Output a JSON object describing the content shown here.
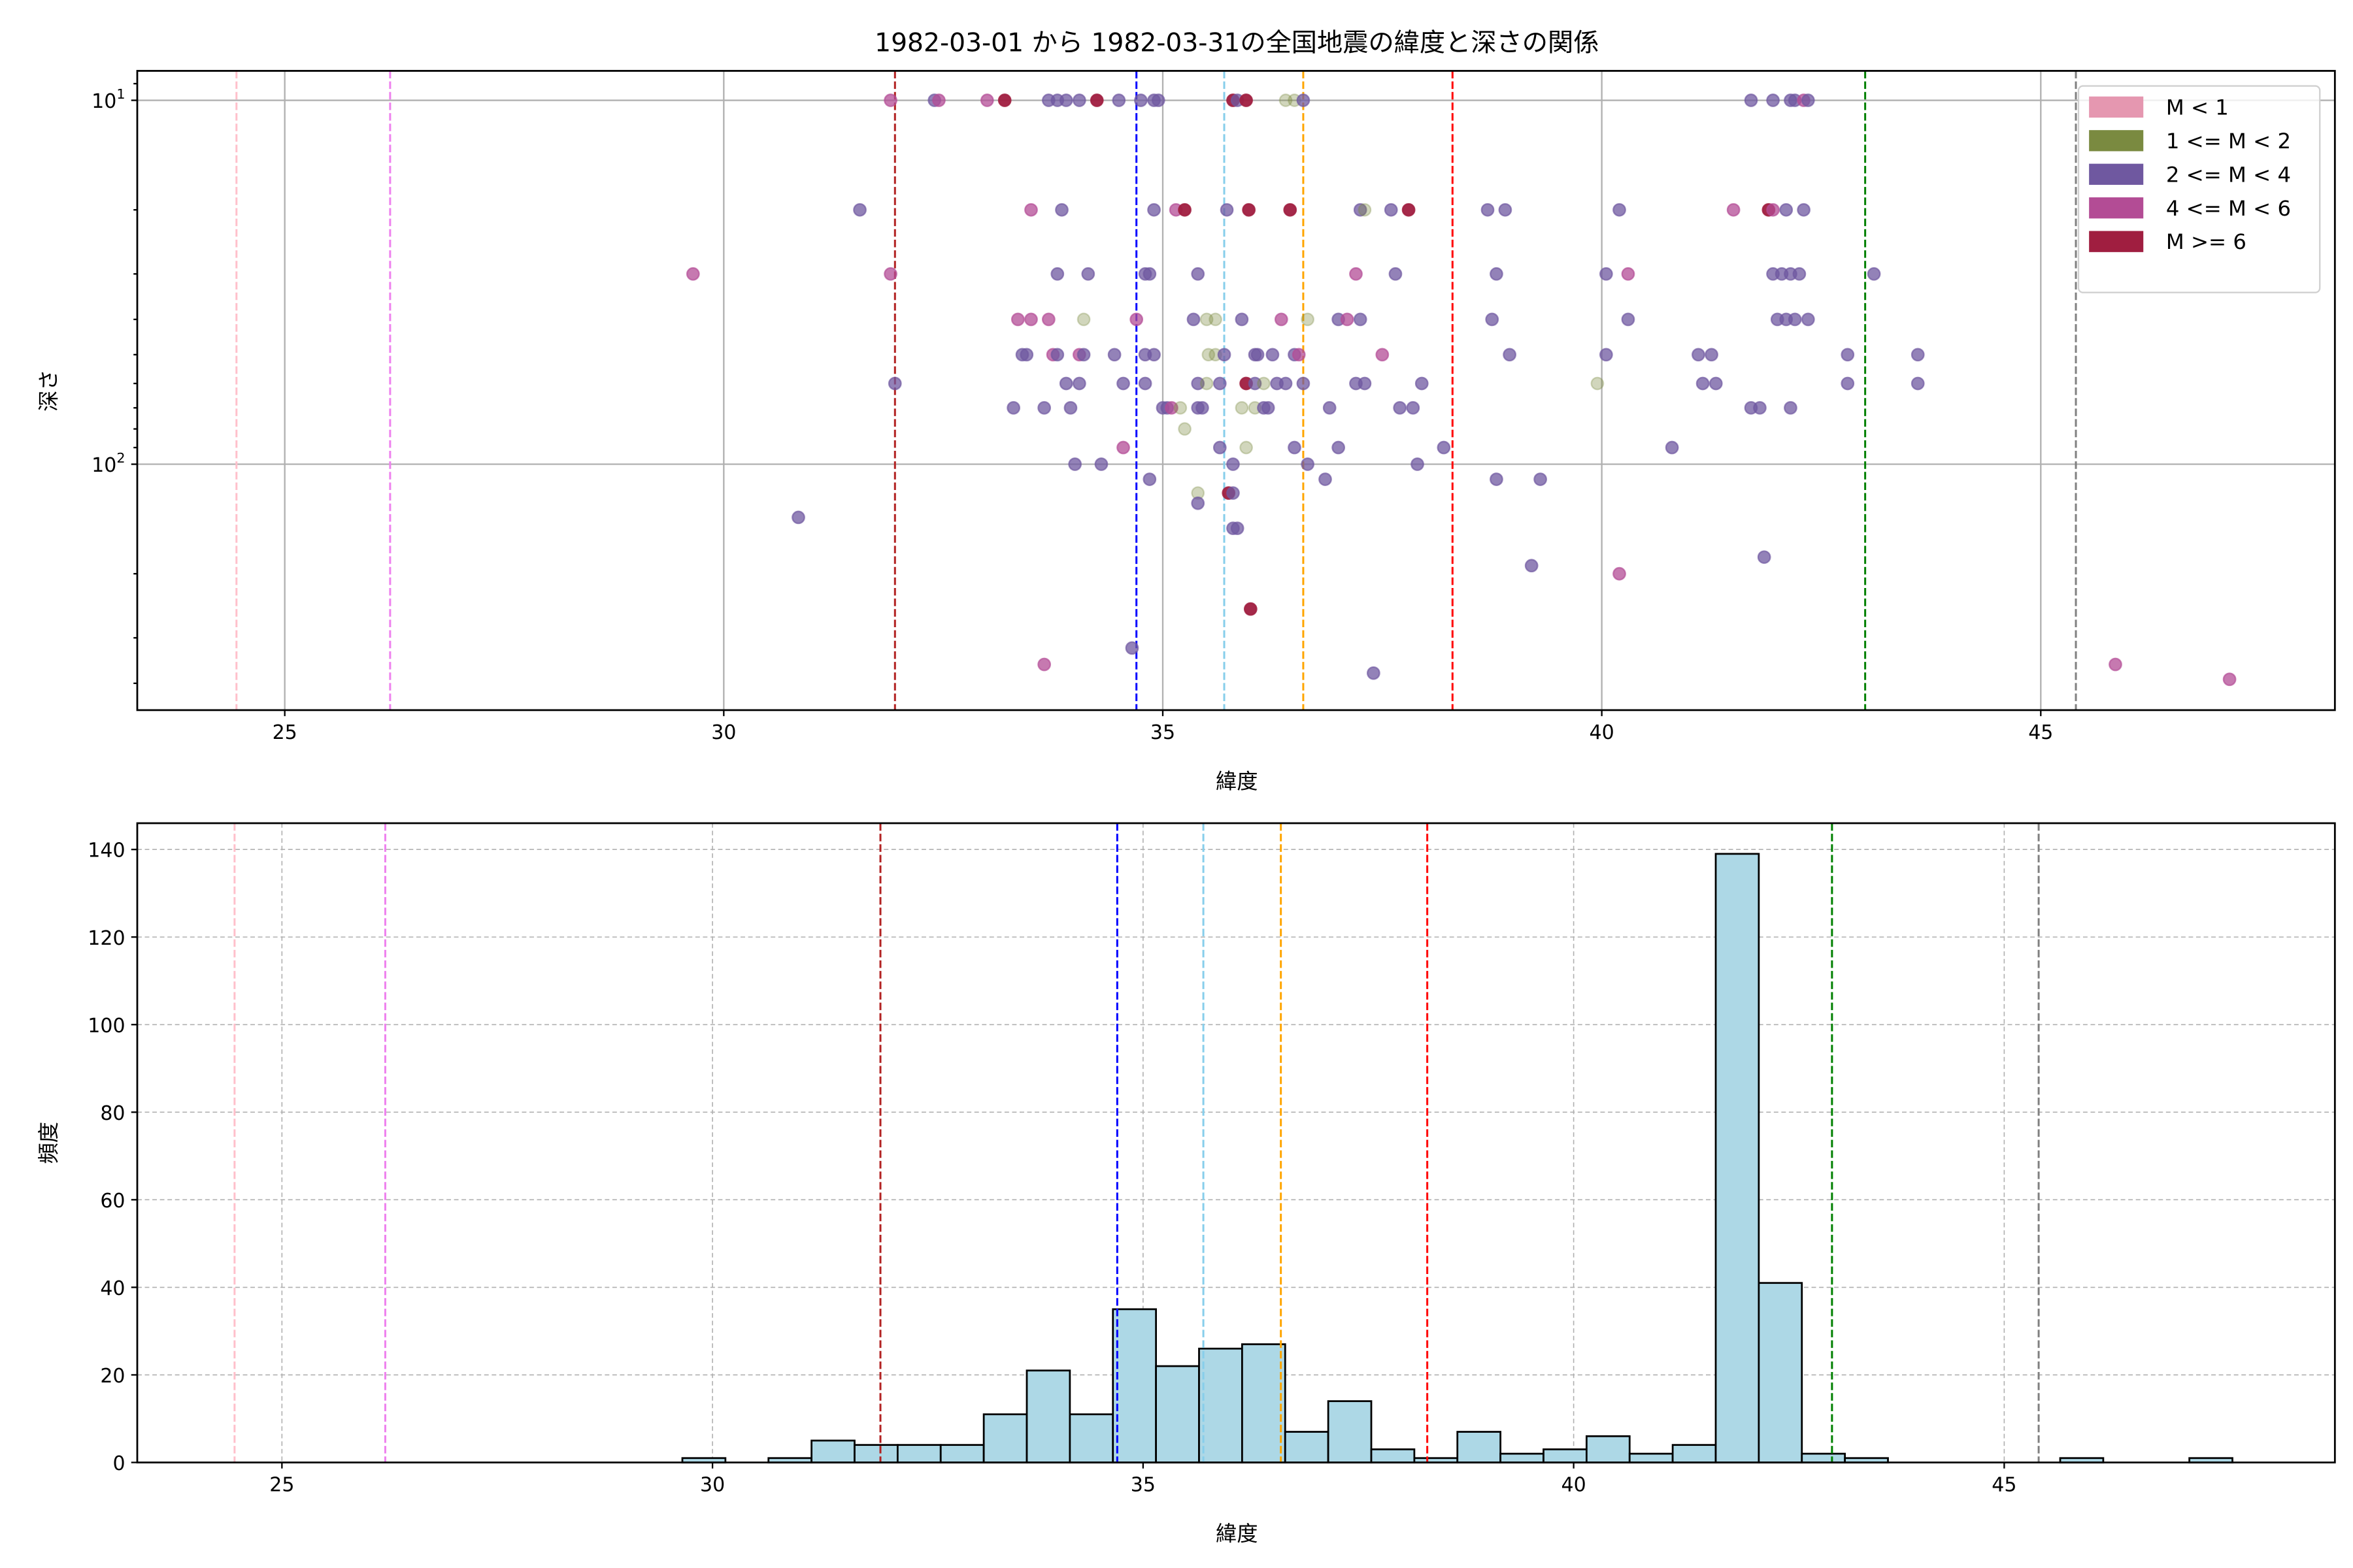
{
  "chart_data": [
    {
      "type": "scatter",
      "title": "1982-03-01 から 1982-03-31の全国地震の緯度と深さの関係",
      "xlabel": "緯度",
      "ylabel": "深さ",
      "xlim": [
        23.32,
        48.35
      ],
      "ylim": [
        474,
        8.3
      ],
      "yscale": "log",
      "yaxis_inverted": true,
      "xticks": [
        25,
        30,
        35,
        40,
        45
      ],
      "ytick_labels": [
        {
          "value": 10,
          "base": "10",
          "exp": "1"
        },
        {
          "value": 100,
          "base": "10",
          "exp": "2"
        }
      ],
      "grid": true,
      "legend": {
        "placement": "top-right",
        "entries": [
          {
            "label": "M < 1",
            "color": "#e597b0"
          },
          {
            "label": "1 <= M < 2",
            "color": "#7a8a40"
          },
          {
            "label": "2 <= M < 4",
            "color": "#6f58a0"
          },
          {
            "label": "4 <= M < 6",
            "color": "#b34c95"
          },
          {
            "label": "M >= 6",
            "color": "#a01e40"
          }
        ]
      },
      "points_format": [
        "latitude",
        "depth",
        "magnitude_class_index"
      ],
      "points": [
        [
          31.9,
          10,
          3
        ],
        [
          32.4,
          10,
          2
        ],
        [
          32.45,
          10,
          3
        ],
        [
          33.0,
          10,
          3
        ],
        [
          33.2,
          10,
          4
        ],
        [
          33.7,
          10,
          2
        ],
        [
          33.8,
          10,
          2
        ],
        [
          33.9,
          10,
          2
        ],
        [
          34.05,
          10,
          2
        ],
        [
          34.25,
          10,
          4
        ],
        [
          34.5,
          10,
          2
        ],
        [
          34.75,
          10,
          2
        ],
        [
          34.9,
          10,
          2
        ],
        [
          34.95,
          10,
          2
        ],
        [
          35.8,
          10,
          4
        ],
        [
          35.85,
          10,
          2
        ],
        [
          35.95,
          10,
          4
        ],
        [
          36.4,
          10,
          1
        ],
        [
          36.5,
          10,
          1
        ],
        [
          36.6,
          10,
          2
        ],
        [
          41.7,
          10,
          2
        ],
        [
          41.95,
          10,
          2
        ],
        [
          42.15,
          10,
          2
        ],
        [
          42.2,
          10,
          2
        ],
        [
          42.3,
          10,
          3
        ],
        [
          42.35,
          10,
          2
        ],
        [
          31.55,
          20,
          2
        ],
        [
          33.5,
          20,
          3
        ],
        [
          33.85,
          20,
          2
        ],
        [
          34.9,
          20,
          2
        ],
        [
          35.15,
          20,
          3
        ],
        [
          35.25,
          20,
          4
        ],
        [
          35.73,
          20,
          2
        ],
        [
          35.98,
          20,
          4
        ],
        [
          36.45,
          20,
          4
        ],
        [
          37.25,
          20,
          2
        ],
        [
          37.3,
          20,
          1
        ],
        [
          37.6,
          20,
          2
        ],
        [
          37.8,
          20,
          4
        ],
        [
          38.7,
          20,
          2
        ],
        [
          38.9,
          20,
          2
        ],
        [
          40.2,
          20,
          2
        ],
        [
          41.5,
          20,
          3
        ],
        [
          41.9,
          20,
          4
        ],
        [
          41.95,
          20,
          3
        ],
        [
          42.1,
          20,
          2
        ],
        [
          42.3,
          20,
          2
        ],
        [
          29.65,
          30,
          3
        ],
        [
          31.9,
          30,
          3
        ],
        [
          33.8,
          30,
          2
        ],
        [
          34.15,
          30,
          2
        ],
        [
          34.8,
          30,
          2
        ],
        [
          34.85,
          30,
          2
        ],
        [
          35.4,
          30,
          2
        ],
        [
          37.2,
          30,
          3
        ],
        [
          37.65,
          30,
          2
        ],
        [
          38.8,
          30,
          2
        ],
        [
          40.05,
          30,
          2
        ],
        [
          40.3,
          30,
          3
        ],
        [
          41.95,
          30,
          2
        ],
        [
          42.05,
          30,
          2
        ],
        [
          42.15,
          30,
          2
        ],
        [
          42.25,
          30,
          2
        ],
        [
          43.1,
          30,
          2
        ],
        [
          33.35,
          40,
          3
        ],
        [
          33.5,
          40,
          3
        ],
        [
          33.7,
          40,
          3
        ],
        [
          34.1,
          40,
          1
        ],
        [
          34.7,
          40,
          3
        ],
        [
          35.35,
          40,
          2
        ],
        [
          35.5,
          40,
          1
        ],
        [
          35.6,
          40,
          1
        ],
        [
          35.9,
          40,
          2
        ],
        [
          36.35,
          40,
          3
        ],
        [
          36.65,
          40,
          1
        ],
        [
          37.0,
          40,
          2
        ],
        [
          37.1,
          40,
          3
        ],
        [
          37.25,
          40,
          2
        ],
        [
          38.75,
          40,
          2
        ],
        [
          40.3,
          40,
          2
        ],
        [
          42.0,
          40,
          2
        ],
        [
          42.1,
          40,
          2
        ],
        [
          42.2,
          40,
          2
        ],
        [
          42.35,
          40,
          2
        ],
        [
          33.4,
          50,
          2
        ],
        [
          33.45,
          50,
          2
        ],
        [
          33.75,
          50,
          3
        ],
        [
          33.8,
          50,
          2
        ],
        [
          34.05,
          50,
          3
        ],
        [
          34.1,
          50,
          2
        ],
        [
          34.45,
          50,
          2
        ],
        [
          34.8,
          50,
          2
        ],
        [
          34.9,
          50,
          2
        ],
        [
          35.52,
          50,
          1
        ],
        [
          35.6,
          50,
          1
        ],
        [
          35.7,
          50,
          2
        ],
        [
          36.05,
          50,
          2
        ],
        [
          36.08,
          50,
          2
        ],
        [
          36.25,
          50,
          2
        ],
        [
          36.5,
          50,
          2
        ],
        [
          36.55,
          50,
          3
        ],
        [
          37.5,
          50,
          3
        ],
        [
          38.95,
          50,
          2
        ],
        [
          40.05,
          50,
          2
        ],
        [
          41.1,
          50,
          2
        ],
        [
          41.25,
          50,
          2
        ],
        [
          42.8,
          50,
          2
        ],
        [
          43.6,
          50,
          2
        ],
        [
          31.95,
          60,
          2
        ],
        [
          33.9,
          60,
          2
        ],
        [
          34.05,
          60,
          2
        ],
        [
          34.55,
          60,
          2
        ],
        [
          34.8,
          60,
          2
        ],
        [
          35.4,
          60,
          2
        ],
        [
          35.5,
          60,
          1
        ],
        [
          35.65,
          60,
          2
        ],
        [
          35.95,
          60,
          4
        ],
        [
          36.05,
          60,
          2
        ],
        [
          36.15,
          60,
          1
        ],
        [
          36.3,
          60,
          2
        ],
        [
          36.4,
          60,
          2
        ],
        [
          36.6,
          60,
          2
        ],
        [
          37.2,
          60,
          2
        ],
        [
          37.3,
          60,
          2
        ],
        [
          37.95,
          60,
          2
        ],
        [
          39.95,
          60,
          1
        ],
        [
          41.15,
          60,
          2
        ],
        [
          41.3,
          60,
          2
        ],
        [
          42.8,
          60,
          2
        ],
        [
          43.6,
          60,
          2
        ],
        [
          33.3,
          70,
          2
        ],
        [
          33.65,
          70,
          2
        ],
        [
          33.95,
          70,
          2
        ],
        [
          35.0,
          70,
          2
        ],
        [
          35.05,
          70,
          2
        ],
        [
          35.1,
          70,
          3
        ],
        [
          35.2,
          70,
          1
        ],
        [
          35.4,
          70,
          2
        ],
        [
          35.45,
          70,
          2
        ],
        [
          35.9,
          70,
          1
        ],
        [
          36.05,
          70,
          1
        ],
        [
          36.15,
          70,
          2
        ],
        [
          36.2,
          70,
          2
        ],
        [
          36.9,
          70,
          2
        ],
        [
          37.7,
          70,
          2
        ],
        [
          37.85,
          70,
          2
        ],
        [
          41.7,
          70,
          2
        ],
        [
          41.8,
          70,
          2
        ],
        [
          42.15,
          70,
          2
        ],
        [
          35.25,
          80,
          1
        ],
        [
          34.55,
          90,
          3
        ],
        [
          35.65,
          90,
          2
        ],
        [
          35.95,
          90,
          1
        ],
        [
          36.5,
          90,
          2
        ],
        [
          37.0,
          90,
          2
        ],
        [
          38.2,
          90,
          2
        ],
        [
          40.8,
          90,
          2
        ],
        [
          34.0,
          100,
          2
        ],
        [
          34.3,
          100,
          2
        ],
        [
          35.8,
          100,
          2
        ],
        [
          36.65,
          100,
          2
        ],
        [
          37.9,
          100,
          2
        ],
        [
          34.85,
          110,
          2
        ],
        [
          36.85,
          110,
          2
        ],
        [
          38.8,
          110,
          2
        ],
        [
          39.3,
          110,
          2
        ],
        [
          35.4,
          120,
          1
        ],
        [
          35.75,
          120,
          4
        ],
        [
          35.8,
          120,
          2
        ],
        [
          35.4,
          128,
          2
        ],
        [
          35.8,
          150,
          2
        ],
        [
          35.85,
          150,
          2
        ],
        [
          30.85,
          140,
          2
        ],
        [
          39.2,
          190,
          2
        ],
        [
          40.2,
          200,
          3
        ],
        [
          41.85,
          180,
          2
        ],
        [
          36.0,
          250,
          4
        ],
        [
          34.65,
          320,
          2
        ],
        [
          33.65,
          355,
          3
        ],
        [
          37.4,
          375,
          2
        ],
        [
          45.85,
          355,
          3
        ],
        [
          47.15,
          390,
          3
        ]
      ],
      "vlines": [
        {
          "x": 24.45,
          "color": "#ffc0cb"
        },
        {
          "x": 26.2,
          "color": "#ee82ee"
        },
        {
          "x": 31.95,
          "color": "#b22222"
        },
        {
          "x": 34.7,
          "color": "#0000ff"
        },
        {
          "x": 35.7,
          "color": "#87ceeb"
        },
        {
          "x": 36.6,
          "color": "#ffa500"
        },
        {
          "x": 38.3,
          "color": "#ff0000"
        },
        {
          "x": 43.0,
          "color": "#008000"
        },
        {
          "x": 45.4,
          "color": "#808080"
        }
      ]
    },
    {
      "type": "bar",
      "subtype": "histogram",
      "xlabel": "緯度",
      "ylabel": "頻度",
      "xlim": [
        23.32,
        48.84
      ],
      "ylim": [
        0,
        146
      ],
      "xticks": [
        25,
        30,
        35,
        40,
        45
      ],
      "yticks": [
        0,
        20,
        40,
        60,
        80,
        100,
        120,
        140
      ],
      "grid": true,
      "bar_color": "#add8e6",
      "bin_start": 29.65,
      "bin_width": 0.5,
      "counts": [
        1,
        0,
        1,
        5,
        4,
        4,
        4,
        11,
        21,
        11,
        35,
        22,
        26,
        27,
        7,
        14,
        3,
        1,
        7,
        2,
        3,
        6,
        2,
        4,
        139,
        41,
        2,
        1,
        0,
        0,
        0,
        0,
        1,
        0,
        0,
        1
      ],
      "vlines": [
        {
          "x": 24.45,
          "color": "#ffc0cb"
        },
        {
          "x": 26.2,
          "color": "#ee82ee"
        },
        {
          "x": 31.95,
          "color": "#b22222"
        },
        {
          "x": 34.7,
          "color": "#0000ff"
        },
        {
          "x": 35.7,
          "color": "#87ceeb"
        },
        {
          "x": 36.6,
          "color": "#ffa500"
        },
        {
          "x": 38.3,
          "color": "#ff0000"
        },
        {
          "x": 43.0,
          "color": "#008000"
        },
        {
          "x": 45.4,
          "color": "#808080"
        }
      ]
    }
  ]
}
